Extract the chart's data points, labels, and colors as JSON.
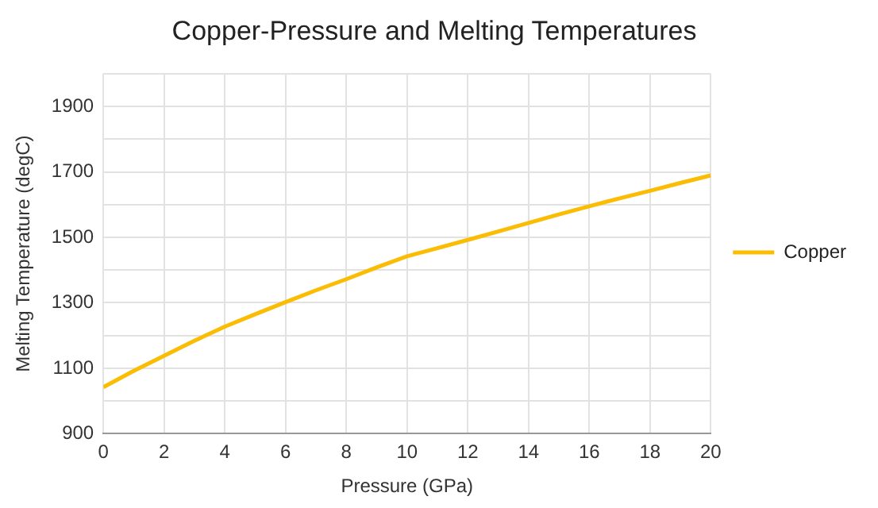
{
  "chart_data": {
    "type": "line",
    "title": "Copper-Pressure and Melting Temperatures",
    "xlabel": "Pressure (GPa)",
    "ylabel": "Melting Temperature (degC)",
    "x": [
      0,
      1,
      2,
      3,
      4,
      5,
      6,
      7,
      8,
      9,
      10,
      11,
      12,
      13,
      14,
      15,
      16,
      17,
      18,
      19,
      20
    ],
    "series": [
      {
        "name": "Copper",
        "color": "#fbbc04",
        "values": [
          1042,
          1092,
          1138,
          1184,
          1227,
          1265,
          1302,
          1338,
          1372,
          1408,
          1442,
          1467,
          1492,
          1518,
          1544,
          1570,
          1595,
          1619,
          1642,
          1666,
          1689
        ]
      }
    ],
    "xlim": [
      0,
      20
    ],
    "xticks": [
      0,
      2,
      4,
      6,
      8,
      10,
      12,
      14,
      16,
      18,
      20
    ],
    "ylim": [
      900,
      2000
    ],
    "yticks": [
      900,
      {
        "value": 1000,
        "label": null
      },
      1100,
      {
        "value": 1200,
        "label": null
      },
      1300,
      {
        "value": 1400,
        "label": null
      },
      1500,
      {
        "value": 1600,
        "label": null
      },
      1700,
      {
        "value": 1800,
        "label": null
      },
      1900,
      {
        "value": 2000,
        "label": null
      }
    ],
    "grid": true,
    "legend": "right",
    "marker": "none",
    "line_style": "solid"
  }
}
